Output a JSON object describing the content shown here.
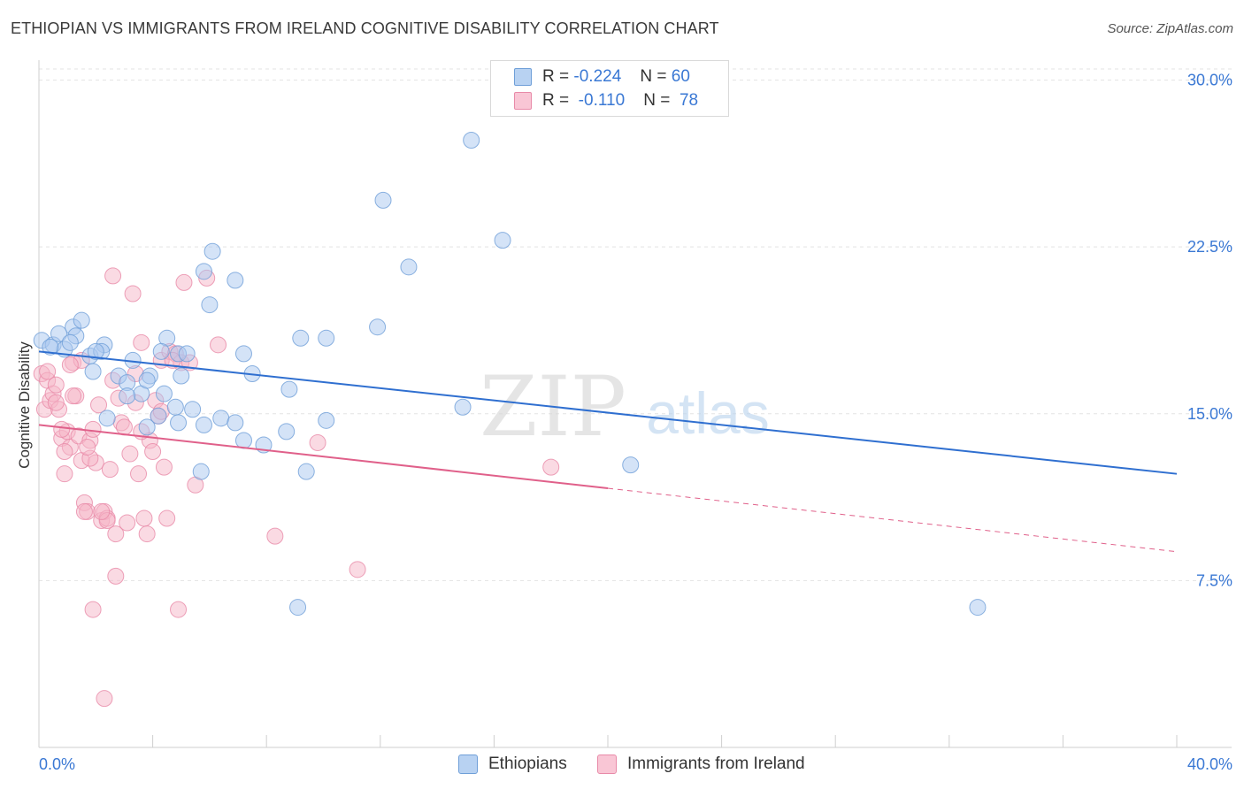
{
  "title": "ETHIOPIAN VS IMMIGRANTS FROM IRELAND COGNITIVE DISABILITY CORRELATION CHART",
  "source": "Source: ZipAtlas.com",
  "watermark": {
    "zip": "ZIP",
    "atlas": "atlas"
  },
  "legend": {
    "series1": {
      "r_label": "R =",
      "r_value": "-0.224",
      "n_label": "N =",
      "n_value": "60"
    },
    "series2": {
      "r_label": "R =",
      "r_value": "-0.110",
      "n_label": "N =",
      "n_value": "78"
    }
  },
  "colors": {
    "blue_fill": "#a9c8ef",
    "blue_stroke": "#6f9fd8",
    "blue_line": "#2f6fd0",
    "pink_fill": "#f5b5c8",
    "pink_stroke": "#e88aa8",
    "pink_line": "#e0608a",
    "axis_label": "#3a78d4",
    "grid": "#e3e3e3"
  },
  "chart_data": {
    "type": "scatter",
    "title": "ETHIOPIAN VS IMMIGRANTS FROM IRELAND COGNITIVE DISABILITY CORRELATION CHART",
    "xlabel": "",
    "ylabel": "Cognitive Disability",
    "xlim": [
      0,
      40
    ],
    "ylim": [
      0,
      30.5
    ],
    "x_tick_labels": [
      "0.0%",
      "40.0%"
    ],
    "y_ticks": [
      7.5,
      15.0,
      22.5,
      30.0
    ],
    "y_tick_labels": [
      "7.5%",
      "15.0%",
      "22.5%",
      "30.0%"
    ],
    "grid": "horizontal dashed",
    "legend_position": "top-center",
    "series": [
      {
        "name": "Ethiopians",
        "color": "#a9c8ef",
        "trend": {
          "x": [
            0,
            40
          ],
          "y": [
            17.8,
            12.3
          ],
          "dashed_from": null
        },
        "points": [
          [
            0.1,
            18.3
          ],
          [
            0.5,
            18.1
          ],
          [
            0.9,
            17.9
          ],
          [
            1.2,
            18.9
          ],
          [
            1.5,
            19.2
          ],
          [
            0.7,
            18.6
          ],
          [
            1.3,
            18.5
          ],
          [
            1.8,
            17.6
          ],
          [
            2.3,
            18.1
          ],
          [
            2.2,
            17.8
          ],
          [
            1.9,
            16.9
          ],
          [
            2.8,
            16.7
          ],
          [
            3.1,
            16.4
          ],
          [
            3.3,
            17.4
          ],
          [
            3.9,
            16.7
          ],
          [
            4.4,
            15.9
          ],
          [
            3.6,
            15.9
          ],
          [
            3.8,
            16.5
          ],
          [
            5.0,
            16.7
          ],
          [
            4.9,
            17.7
          ],
          [
            4.5,
            18.4
          ],
          [
            5.8,
            21.4
          ],
          [
            6.1,
            22.3
          ],
          [
            6.9,
            21.0
          ],
          [
            6.0,
            19.9
          ],
          [
            7.2,
            17.7
          ],
          [
            7.5,
            16.8
          ],
          [
            8.8,
            16.1
          ],
          [
            9.2,
            18.4
          ],
          [
            10.1,
            18.4
          ],
          [
            11.9,
            18.9
          ],
          [
            12.1,
            24.6
          ],
          [
            13.0,
            21.6
          ],
          [
            15.2,
            27.3
          ],
          [
            16.3,
            22.8
          ],
          [
            14.9,
            15.3
          ],
          [
            2.4,
            14.8
          ],
          [
            3.8,
            14.4
          ],
          [
            4.2,
            14.9
          ],
          [
            4.8,
            15.3
          ],
          [
            4.9,
            14.6
          ],
          [
            5.4,
            15.2
          ],
          [
            5.8,
            14.5
          ],
          [
            6.4,
            14.8
          ],
          [
            6.9,
            14.6
          ],
          [
            7.2,
            13.8
          ],
          [
            7.9,
            13.6
          ],
          [
            8.7,
            14.2
          ],
          [
            10.1,
            14.7
          ],
          [
            9.4,
            12.4
          ],
          [
            5.7,
            12.4
          ],
          [
            20.8,
            12.7
          ],
          [
            9.1,
            6.3
          ],
          [
            33.0,
            6.3
          ],
          [
            3.1,
            15.8
          ],
          [
            2.0,
            17.8
          ],
          [
            1.1,
            18.2
          ],
          [
            0.4,
            18.0
          ],
          [
            4.3,
            17.8
          ],
          [
            5.2,
            17.7
          ]
        ]
      },
      {
        "name": "Immigrants from Ireland",
        "color": "#f5b5c8",
        "trend": {
          "x": [
            0,
            40
          ],
          "y": [
            14.5,
            8.8
          ],
          "dashed_from": 20
        },
        "points": [
          [
            0.1,
            16.8
          ],
          [
            0.2,
            15.2
          ],
          [
            0.3,
            16.5
          ],
          [
            0.4,
            15.6
          ],
          [
            0.5,
            15.9
          ],
          [
            0.6,
            16.3
          ],
          [
            0.7,
            15.2
          ],
          [
            0.8,
            13.9
          ],
          [
            0.9,
            12.3
          ],
          [
            1.0,
            14.2
          ],
          [
            1.1,
            13.5
          ],
          [
            1.2,
            17.3
          ],
          [
            1.3,
            15.8
          ],
          [
            1.4,
            14.0
          ],
          [
            1.5,
            12.9
          ],
          [
            1.6,
            11.0
          ],
          [
            1.7,
            10.6
          ],
          [
            1.8,
            13.8
          ],
          [
            1.9,
            14.3
          ],
          [
            2.0,
            12.8
          ],
          [
            2.1,
            15.4
          ],
          [
            2.2,
            10.2
          ],
          [
            2.3,
            10.6
          ],
          [
            2.4,
            10.3
          ],
          [
            2.5,
            12.5
          ],
          [
            2.6,
            16.5
          ],
          [
            2.7,
            9.6
          ],
          [
            2.8,
            15.7
          ],
          [
            2.9,
            14.6
          ],
          [
            3.0,
            14.4
          ],
          [
            3.1,
            10.1
          ],
          [
            3.2,
            13.2
          ],
          [
            3.3,
            20.4
          ],
          [
            3.4,
            15.5
          ],
          [
            3.5,
            12.3
          ],
          [
            3.6,
            18.2
          ],
          [
            3.7,
            10.3
          ],
          [
            3.8,
            9.6
          ],
          [
            3.9,
            13.8
          ],
          [
            4.0,
            13.3
          ],
          [
            4.1,
            15.6
          ],
          [
            4.2,
            14.9
          ],
          [
            4.3,
            17.4
          ],
          [
            4.4,
            12.6
          ],
          [
            4.5,
            10.3
          ],
          [
            4.6,
            17.8
          ],
          [
            4.8,
            17.7
          ],
          [
            5.0,
            17.3
          ],
          [
            5.1,
            20.9
          ],
          [
            5.3,
            17.3
          ],
          [
            5.5,
            11.8
          ],
          [
            5.9,
            21.1
          ],
          [
            6.3,
            18.1
          ],
          [
            1.5,
            17.4
          ],
          [
            2.6,
            21.2
          ],
          [
            9.8,
            13.7
          ],
          [
            11.2,
            8.0
          ],
          [
            8.3,
            9.5
          ],
          [
            18.0,
            12.6
          ],
          [
            1.8,
            13.0
          ],
          [
            2.7,
            7.7
          ],
          [
            1.9,
            6.2
          ],
          [
            4.9,
            6.2
          ],
          [
            2.3,
            2.2
          ],
          [
            0.3,
            16.9
          ],
          [
            0.9,
            13.3
          ],
          [
            1.2,
            15.8
          ],
          [
            1.7,
            13.5
          ],
          [
            0.6,
            15.5
          ],
          [
            1.6,
            10.6
          ],
          [
            2.4,
            10.2
          ],
          [
            4.7,
            17.4
          ],
          [
            3.4,
            16.8
          ],
          [
            0.8,
            14.3
          ],
          [
            1.1,
            17.2
          ],
          [
            2.2,
            10.6
          ],
          [
            4.3,
            15.1
          ],
          [
            3.6,
            14.2
          ]
        ]
      }
    ]
  },
  "bottom_legend": {
    "series1": "Ethiopians",
    "series2": "Immigrants from Ireland"
  }
}
